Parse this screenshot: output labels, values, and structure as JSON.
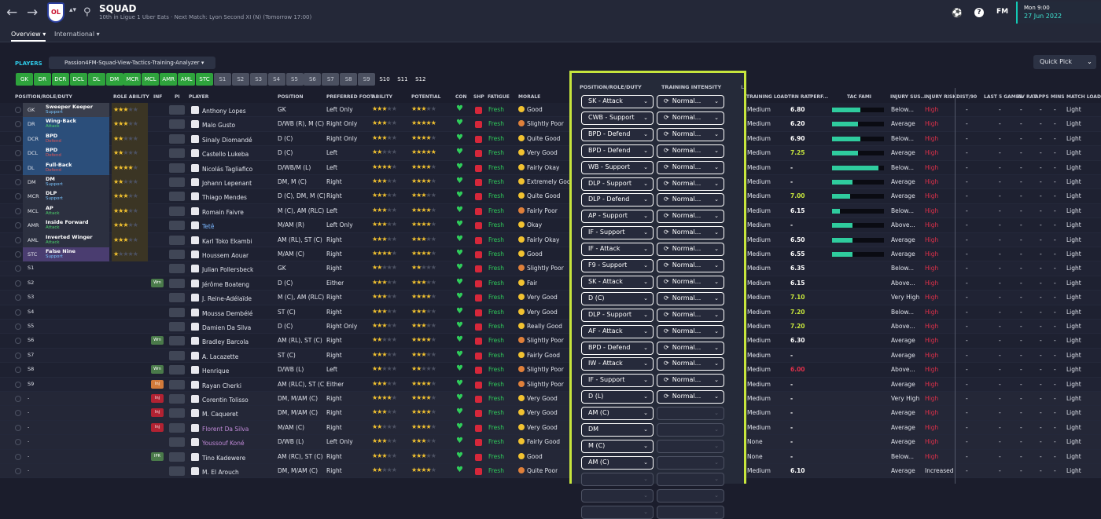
{
  "header": {
    "title": "SQUAD",
    "subtitle": "10th in Ligue 1 Uber Eats · Next Match: Lyon Second XI (N) (Tomorrow 17:00)",
    "club_logo": "OL",
    "back_icon": "←",
    "forward_icon": "→",
    "search_icon": "⚲",
    "date_line1": "Mon 9:00",
    "date_line2": "27 Jun 2022",
    "fm_label": "FM",
    "help_icon": "?",
    "ball_icon": "⚽"
  },
  "subnav": {
    "tabs": [
      {
        "label": "Overview ▾"
      },
      {
        "label": "International ▾"
      }
    ]
  },
  "players_title": "PLAYERS",
  "view_dropdown": "Passion4FM-Squad-View-Tactics-Training-Analyzer ▾",
  "quick_pick": "Quick Pick",
  "positions": [
    {
      "label": "GK",
      "kind": "g"
    },
    {
      "label": "DR",
      "kind": "g"
    },
    {
      "label": "DCR",
      "kind": "g"
    },
    {
      "label": "DCL",
      "kind": "g"
    },
    {
      "label": "DL",
      "kind": "g"
    },
    {
      "label": "DM",
      "kind": "g"
    },
    {
      "label": "MCR",
      "kind": "g"
    },
    {
      "label": "MCL",
      "kind": "g"
    },
    {
      "label": "AMR",
      "kind": "g"
    },
    {
      "label": "AML",
      "kind": "g"
    },
    {
      "label": "STC",
      "kind": "g"
    },
    {
      "label": "S1",
      "kind": "s"
    },
    {
      "label": "S2",
      "kind": "s"
    },
    {
      "label": "S3",
      "kind": "s"
    },
    {
      "label": "S4",
      "kind": "s"
    },
    {
      "label": "S5",
      "kind": "s"
    },
    {
      "label": "S6",
      "kind": "s"
    },
    {
      "label": "S7",
      "kind": "s"
    },
    {
      "label": "S8",
      "kind": "s"
    },
    {
      "label": "S9",
      "kind": "s"
    },
    {
      "label": "S10",
      "kind": "n"
    },
    {
      "label": "S11",
      "kind": "n"
    },
    {
      "label": "S12",
      "kind": "n"
    }
  ],
  "columns": {
    "pos_role_duty": "POSITION/ROLE/DUTY",
    "role_ability": "ROLE ABILITY",
    "inf": "INF",
    "pi": "PI",
    "player": "PLAYER",
    "position": "POSITION",
    "pref_foot": "PREFERRED FOOT",
    "ability": "ABILITY",
    "potential": "POTENTIAL",
    "con": "CON",
    "shp": "SHP",
    "fatigue": "FATIGUE",
    "morale": "MORALE",
    "training_load": "TRAINING LOAD",
    "trn_rat": "TRN RAT",
    "perf": "PERF...",
    "tac_fami": "TAC FAMI",
    "injury_sus": "INJURY SUS...",
    "injury_risk": "INJURY RISK",
    "dist": "DIST/90",
    "last5": "LAST 5 GAMES",
    "av_rat": "AV RAT",
    "apps": "APPS",
    "mins": "MINS",
    "match_load": "MATCH LOAD"
  },
  "overlay": {
    "header_prd": "POSITION/ROLE/DUTY",
    "header_ti": "TRAINING INTENSITY",
    "cut_label": "L"
  },
  "players": [
    {
      "slot": "GK",
      "slot_role": "Sweeper Keeper",
      "slot_duty": "Support",
      "ra": 3,
      "name": "Anthony Lopes",
      "position": "GK",
      "foot": "Left Only",
      "ability": 3,
      "potential": 3,
      "morale": "Good",
      "mood": "good",
      "load": "Medium",
      "trn": "6.80",
      "tac": 0.55,
      "inj_sus": "Below...",
      "inj_risk": "High",
      "match_load": "Light",
      "prd": "SK - Attack",
      "ti": "Normal..."
    },
    {
      "slot": "DR",
      "slot_role": "Wing-Back",
      "slot_duty": "Attack",
      "ra": 3,
      "name": "Malo Gusto",
      "position": "D/WB (R), M (C)",
      "foot": "Right Only",
      "ability": 3,
      "potential": 5,
      "morale": "Slightly Poor",
      "mood": "poor",
      "load": "Medium",
      "trn": "6.20",
      "tac": 0.5,
      "inj_sus": "Average",
      "inj_risk": "High",
      "match_load": "Light",
      "prd": "CWB - Support",
      "ti": "Normal..."
    },
    {
      "slot": "DCR",
      "slot_role": "BPD",
      "slot_duty": "Defend",
      "ra": 2,
      "name": "Sinaly Diomandé",
      "position": "D (C)",
      "foot": "Right Only",
      "ability": 3,
      "potential": 4,
      "morale": "Quite Good",
      "mood": "good",
      "load": "Medium",
      "trn": "6.90",
      "tac": 0.55,
      "inj_sus": "Below...",
      "inj_risk": "High",
      "match_load": "Light",
      "prd": "BPD - Defend",
      "ti": "Normal..."
    },
    {
      "slot": "DCL",
      "slot_role": "BPD",
      "slot_duty": "Defend",
      "ra": 2,
      "name": "Castello Lukeba",
      "position": "D (C)",
      "foot": "Left",
      "ability": 2,
      "potential": 5,
      "morale": "Very Good",
      "mood": "good",
      "load": "Medium",
      "trn": "7.25",
      "tac": 0.5,
      "inj_sus": "Average",
      "inj_risk": "High",
      "match_load": "Light",
      "prd": "BPD - Defend",
      "ti": "Normal..."
    },
    {
      "slot": "DL",
      "slot_role": "Full-Back",
      "slot_duty": "Defend",
      "ra": 4,
      "name": "Nicolás Tagliafico",
      "position": "D/WB/M (L)",
      "foot": "Left",
      "ability": 4,
      "potential": 4,
      "morale": "Fairly Okay",
      "mood": "good",
      "load": "Medium",
      "trn": "-",
      "tac": 0.9,
      "inj_sus": "Below...",
      "inj_risk": "High",
      "match_load": "Light",
      "prd": "WB - Support",
      "ti": "Normal..."
    },
    {
      "slot": "DM",
      "slot_role": "DM",
      "slot_duty": "Support",
      "ra": 2,
      "name": "Johann Lepenant",
      "position": "DM, M (C)",
      "foot": "Right",
      "ability": 3,
      "potential": 4,
      "morale": "Extremely Good",
      "mood": "good",
      "load": "Medium",
      "trn": "-",
      "tac": 0.4,
      "inj_sus": "Average",
      "inj_risk": "High",
      "match_load": "Light",
      "prd": "DLP - Support",
      "ti": "Normal..."
    },
    {
      "slot": "MCR",
      "slot_role": "DLP",
      "slot_duty": "Support",
      "ra": 3,
      "name": "Thiago Mendes",
      "position": "D (C), DM, M (C)",
      "foot": "Right",
      "ability": 3,
      "potential": 3,
      "morale": "Quite Good",
      "mood": "good",
      "load": "Medium",
      "trn": "7.00",
      "tac": 0.35,
      "inj_sus": "Average",
      "inj_risk": "High",
      "match_load": "Light",
      "prd": "DLP - Defend",
      "ti": "Normal..."
    },
    {
      "slot": "MCL",
      "slot_role": "AP",
      "slot_duty": "Attack",
      "ra": 3,
      "name": "Romain Faivre",
      "position": "M (C), AM (RLC)",
      "foot": "Left",
      "ability": 3,
      "potential": 4,
      "morale": "Fairly Poor",
      "mood": "poor",
      "load": "Medium",
      "trn": "6.15",
      "tac": 0.15,
      "inj_sus": "Below...",
      "inj_risk": "High",
      "match_load": "Light",
      "prd": "AP - Support",
      "ti": "Normal..."
    },
    {
      "slot": "AMR",
      "slot_role": "Inside Forward",
      "slot_duty": "Attack",
      "ra": 3,
      "name": "Tetê",
      "position": "M/AM (R)",
      "foot": "Left Only",
      "ability": 3,
      "potential": 4,
      "morale": "Okay",
      "mood": "good",
      "load": "Medium",
      "trn": "-",
      "tac": 0.4,
      "inj_sus": "Above...",
      "inj_risk": "High",
      "match_load": "Light",
      "prd": "IF - Support",
      "ti": "Normal..."
    },
    {
      "slot": "AML",
      "slot_role": "Inverted Winger",
      "slot_duty": "Attack",
      "ra": 3,
      "name": "Karl Toko Ekambi",
      "position": "AM (RL), ST (C)",
      "foot": "Right",
      "ability": 3,
      "potential": 3,
      "morale": "Fairly Okay",
      "mood": "good",
      "load": "Medium",
      "trn": "6.50",
      "tac": 0.4,
      "inj_sus": "Average",
      "inj_risk": "High",
      "match_load": "Light",
      "prd": "IF - Attack",
      "ti": "Normal..."
    },
    {
      "slot": "STC",
      "slot_role": "False Nine",
      "slot_duty": "Support",
      "ra": 1,
      "name": "Houssem Aouar",
      "position": "M/AM (C)",
      "foot": "Right",
      "ability": 4,
      "potential": 4,
      "morale": "Good",
      "mood": "good",
      "load": "Medium",
      "trn": "6.55",
      "tac": 0.4,
      "inj_sus": "Average",
      "inj_risk": "High",
      "match_load": "Light",
      "prd": "F9 - Support",
      "ti": "Normal..."
    },
    {
      "slot": "S1",
      "name": "Julian Pollersbeck",
      "position": "GK",
      "foot": "Right",
      "ability": 2,
      "potential": 2,
      "morale": "Slightly Poor",
      "mood": "poor",
      "load": "Medium",
      "trn": "6.35",
      "inj_sus": "Below...",
      "inj_risk": "High",
      "match_load": "Light",
      "prd": "SK - Attack",
      "ti": "Normal..."
    },
    {
      "slot": "S2",
      "badge": "Wrn",
      "name": "Jérôme Boateng",
      "position": "D (C)",
      "foot": "Either",
      "ability": 3,
      "potential": 3,
      "morale": "Fair",
      "mood": "good",
      "load": "Medium",
      "trn": "6.15",
      "inj_sus": "Above...",
      "inj_risk": "High",
      "match_load": "Light",
      "prd": "D (C)",
      "ti": "Normal..."
    },
    {
      "slot": "S3",
      "name": "J. Reine-Adélaïde",
      "position": "M (C), AM (RLC)",
      "foot": "Right",
      "ability": 3,
      "potential": 4,
      "morale": "Very Good",
      "mood": "good",
      "load": "Medium",
      "trn": "7.10",
      "inj_sus": "Very High",
      "inj_risk": "High",
      "match_load": "Light",
      "prd": "DLP - Support",
      "ti": "Normal..."
    },
    {
      "slot": "S4",
      "name": "Moussa Dembélé",
      "position": "ST (C)",
      "foot": "Right",
      "ability": 3,
      "potential": 3,
      "morale": "Very Good",
      "mood": "good",
      "load": "Medium",
      "trn": "7.20",
      "inj_sus": "Below...",
      "inj_risk": "High",
      "match_load": "Light",
      "prd": "AF - Attack",
      "ti": "Normal..."
    },
    {
      "slot": "S5",
      "name": "Damien Da Silva",
      "position": "D (C)",
      "foot": "Right Only",
      "ability": 3,
      "potential": 3,
      "morale": "Really Good",
      "mood": "good",
      "load": "Medium",
      "trn": "7.20",
      "inj_sus": "Above...",
      "inj_risk": "High",
      "match_load": "Light",
      "prd": "BPD - Defend",
      "ti": "Normal..."
    },
    {
      "slot": "S6",
      "badge": "Wrn",
      "name": "Bradley Barcola",
      "position": "AM (RL), ST (C)",
      "foot": "Right",
      "ability": 2,
      "potential": 4,
      "morale": "Slightly Poor",
      "mood": "poor",
      "load": "Medium",
      "trn": "6.30",
      "inj_sus": "Average",
      "inj_risk": "High",
      "match_load": "Light",
      "prd": "IW - Attack",
      "ti": "Normal..."
    },
    {
      "slot": "S7",
      "name": "A. Lacazette",
      "position": "ST (C)",
      "foot": "Right",
      "ability": 3,
      "potential": 3,
      "morale": "Fairly Good",
      "mood": "good",
      "load": "Medium",
      "trn": "-",
      "inj_sus": "Average",
      "inj_risk": "High",
      "match_load": "Light",
      "prd": "IF - Support",
      "ti": "Normal..."
    },
    {
      "slot": "S8",
      "badge": "Wrn",
      "name": "Henrique",
      "position": "D/WB (L)",
      "foot": "Left",
      "ability": 2,
      "potential": 2,
      "morale": "Slightly Poor",
      "mood": "poor",
      "load": "Medium",
      "trn": "6.00",
      "inj_sus": "Above...",
      "inj_risk": "High",
      "match_load": "Light",
      "prd": "D (L)",
      "ti": "Normal..."
    },
    {
      "slot": "S9",
      "badge": "Inj",
      "badge_kind": "inj2",
      "name": "Rayan Cherki",
      "position": "AM (RLC), ST (C)",
      "foot": "Either",
      "ability": 3,
      "potential": 4,
      "morale": "Slightly Poor",
      "mood": "poor",
      "load": "Medium",
      "trn": "-",
      "inj_sus": "Average",
      "inj_risk": "High",
      "match_load": "Light",
      "prd": "AM (C)",
      "ti": ""
    },
    {
      "slot": "-",
      "badge": "Inj",
      "badge_kind": "inj",
      "name": "Corentin Tolisso",
      "position": "DM, M/AM (C)",
      "foot": "Right",
      "ability": 4,
      "potential": 4,
      "morale": "Very Good",
      "mood": "good",
      "load": "Medium",
      "trn": "-",
      "inj_sus": "Very High",
      "inj_risk": "High",
      "match_load": "Light",
      "prd": "DM",
      "ti": ""
    },
    {
      "slot": "-",
      "badge": "Inj",
      "badge_kind": "inj",
      "name": "M. Caqueret",
      "position": "DM, M/AM (C)",
      "foot": "Right",
      "ability": 3,
      "potential": 4,
      "morale": "Very Good",
      "mood": "good",
      "load": "Medium",
      "trn": "-",
      "inj_sus": "Average",
      "inj_risk": "High",
      "match_load": "Light",
      "prd": "M (C)",
      "ti": ""
    },
    {
      "slot": "-",
      "badge": "Inj",
      "badge_kind": "inj",
      "name": "Florent Da Silva",
      "position": "M/AM (C)",
      "foot": "Right",
      "ability": 2,
      "potential": 4,
      "morale": "Very Good",
      "mood": "good",
      "load": "Medium",
      "trn": "-",
      "inj_sus": "Average",
      "inj_risk": "High",
      "match_load": "Light",
      "prd": "AM (C)",
      "ti": ""
    },
    {
      "slot": "-",
      "name": "Youssouf Koné",
      "position": "D/WB (L)",
      "foot": "Left Only",
      "ability": 3,
      "potential": 3,
      "morale": "Fairly Good",
      "mood": "good",
      "load": "None",
      "trn": "-",
      "inj_sus": "Average",
      "inj_risk": "High",
      "match_load": "Light",
      "prd": "",
      "ti": ""
    },
    {
      "slot": "-",
      "badge": "IPR",
      "badge_kind": "ipr",
      "name": "Tino Kadewere",
      "position": "AM (RC), ST (C)",
      "foot": "Right",
      "ability": 3,
      "potential": 3,
      "morale": "Good",
      "mood": "good",
      "load": "None",
      "trn": "-",
      "inj_sus": "Below...",
      "inj_risk": "High",
      "match_load": "Light",
      "prd": "",
      "ti": ""
    },
    {
      "slot": "-",
      "name": "M. El Arouch",
      "position": "DM, M/AM (C)",
      "foot": "Right",
      "ability": 2,
      "potential": 4,
      "morale": "Quite Poor",
      "mood": "poor",
      "load": "Medium",
      "trn": "6.10",
      "inj_sus": "Average",
      "inj_risk": "Increased",
      "match_load": "Light",
      "prd": "",
      "ti": ""
    }
  ],
  "colors": {
    "accent": "#2fcdeb",
    "highlight": "#c7e63d",
    "green": "#2fcc5a",
    "red": "#e0304a"
  }
}
